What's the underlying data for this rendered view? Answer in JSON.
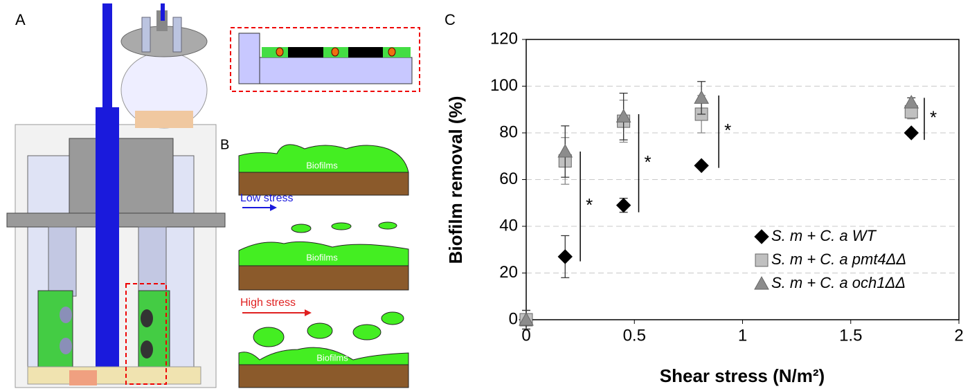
{
  "panel_labels": [
    "A",
    "B",
    "C"
  ],
  "diagram": {
    "biofilm_label": "Biofilms",
    "low_stress": "Low stress",
    "high_stress": "High stress"
  },
  "chart_data": {
    "type": "scatter",
    "x_label": "Shear stress (N/m²)",
    "y_label": "Biofilm removal (%)",
    "xlim": [
      0,
      2
    ],
    "xticks": [
      0,
      0.5,
      1,
      1.5,
      2
    ],
    "ylim": [
      0,
      120
    ],
    "yticks": [
      0,
      20,
      40,
      60,
      80,
      100,
      120
    ],
    "grid": true,
    "legend": "lower right",
    "series": [
      {
        "name": "S. m + C. a WT",
        "marker": "diamond",
        "color": "#000000",
        "x": [
          0,
          0.18,
          0.45,
          0.81,
          1.78
        ],
        "values": [
          0,
          27,
          49,
          66,
          80
        ],
        "errors": [
          4,
          9,
          3,
          1,
          1
        ]
      },
      {
        "name": "S. m + C. a pmt4ΔΔ",
        "marker": "square",
        "color": "#c0c0c0",
        "x": [
          0,
          0.18,
          0.45,
          0.81,
          1.78
        ],
        "values": [
          0,
          68,
          85,
          88,
          89
        ],
        "errors": [
          4,
          10,
          9,
          8,
          3
        ]
      },
      {
        "name": "S. m + C. a och1ΔΔ",
        "marker": "triangle",
        "color": "#8c8c8c",
        "x": [
          0,
          0.18,
          0.45,
          0.81,
          1.78
        ],
        "values": [
          0,
          72,
          87,
          95,
          93
        ],
        "errors": [
          4,
          11,
          10,
          7,
          2
        ]
      }
    ],
    "annotations": [
      {
        "text": "*",
        "x": 0.25,
        "y": [
          25,
          72
        ]
      },
      {
        "text": "*",
        "x": 0.52,
        "y": [
          46,
          88
        ]
      },
      {
        "text": "*",
        "x": 0.89,
        "y": [
          65,
          96
        ]
      },
      {
        "text": "*",
        "x": 1.84,
        "y": [
          77,
          95
        ]
      }
    ]
  }
}
